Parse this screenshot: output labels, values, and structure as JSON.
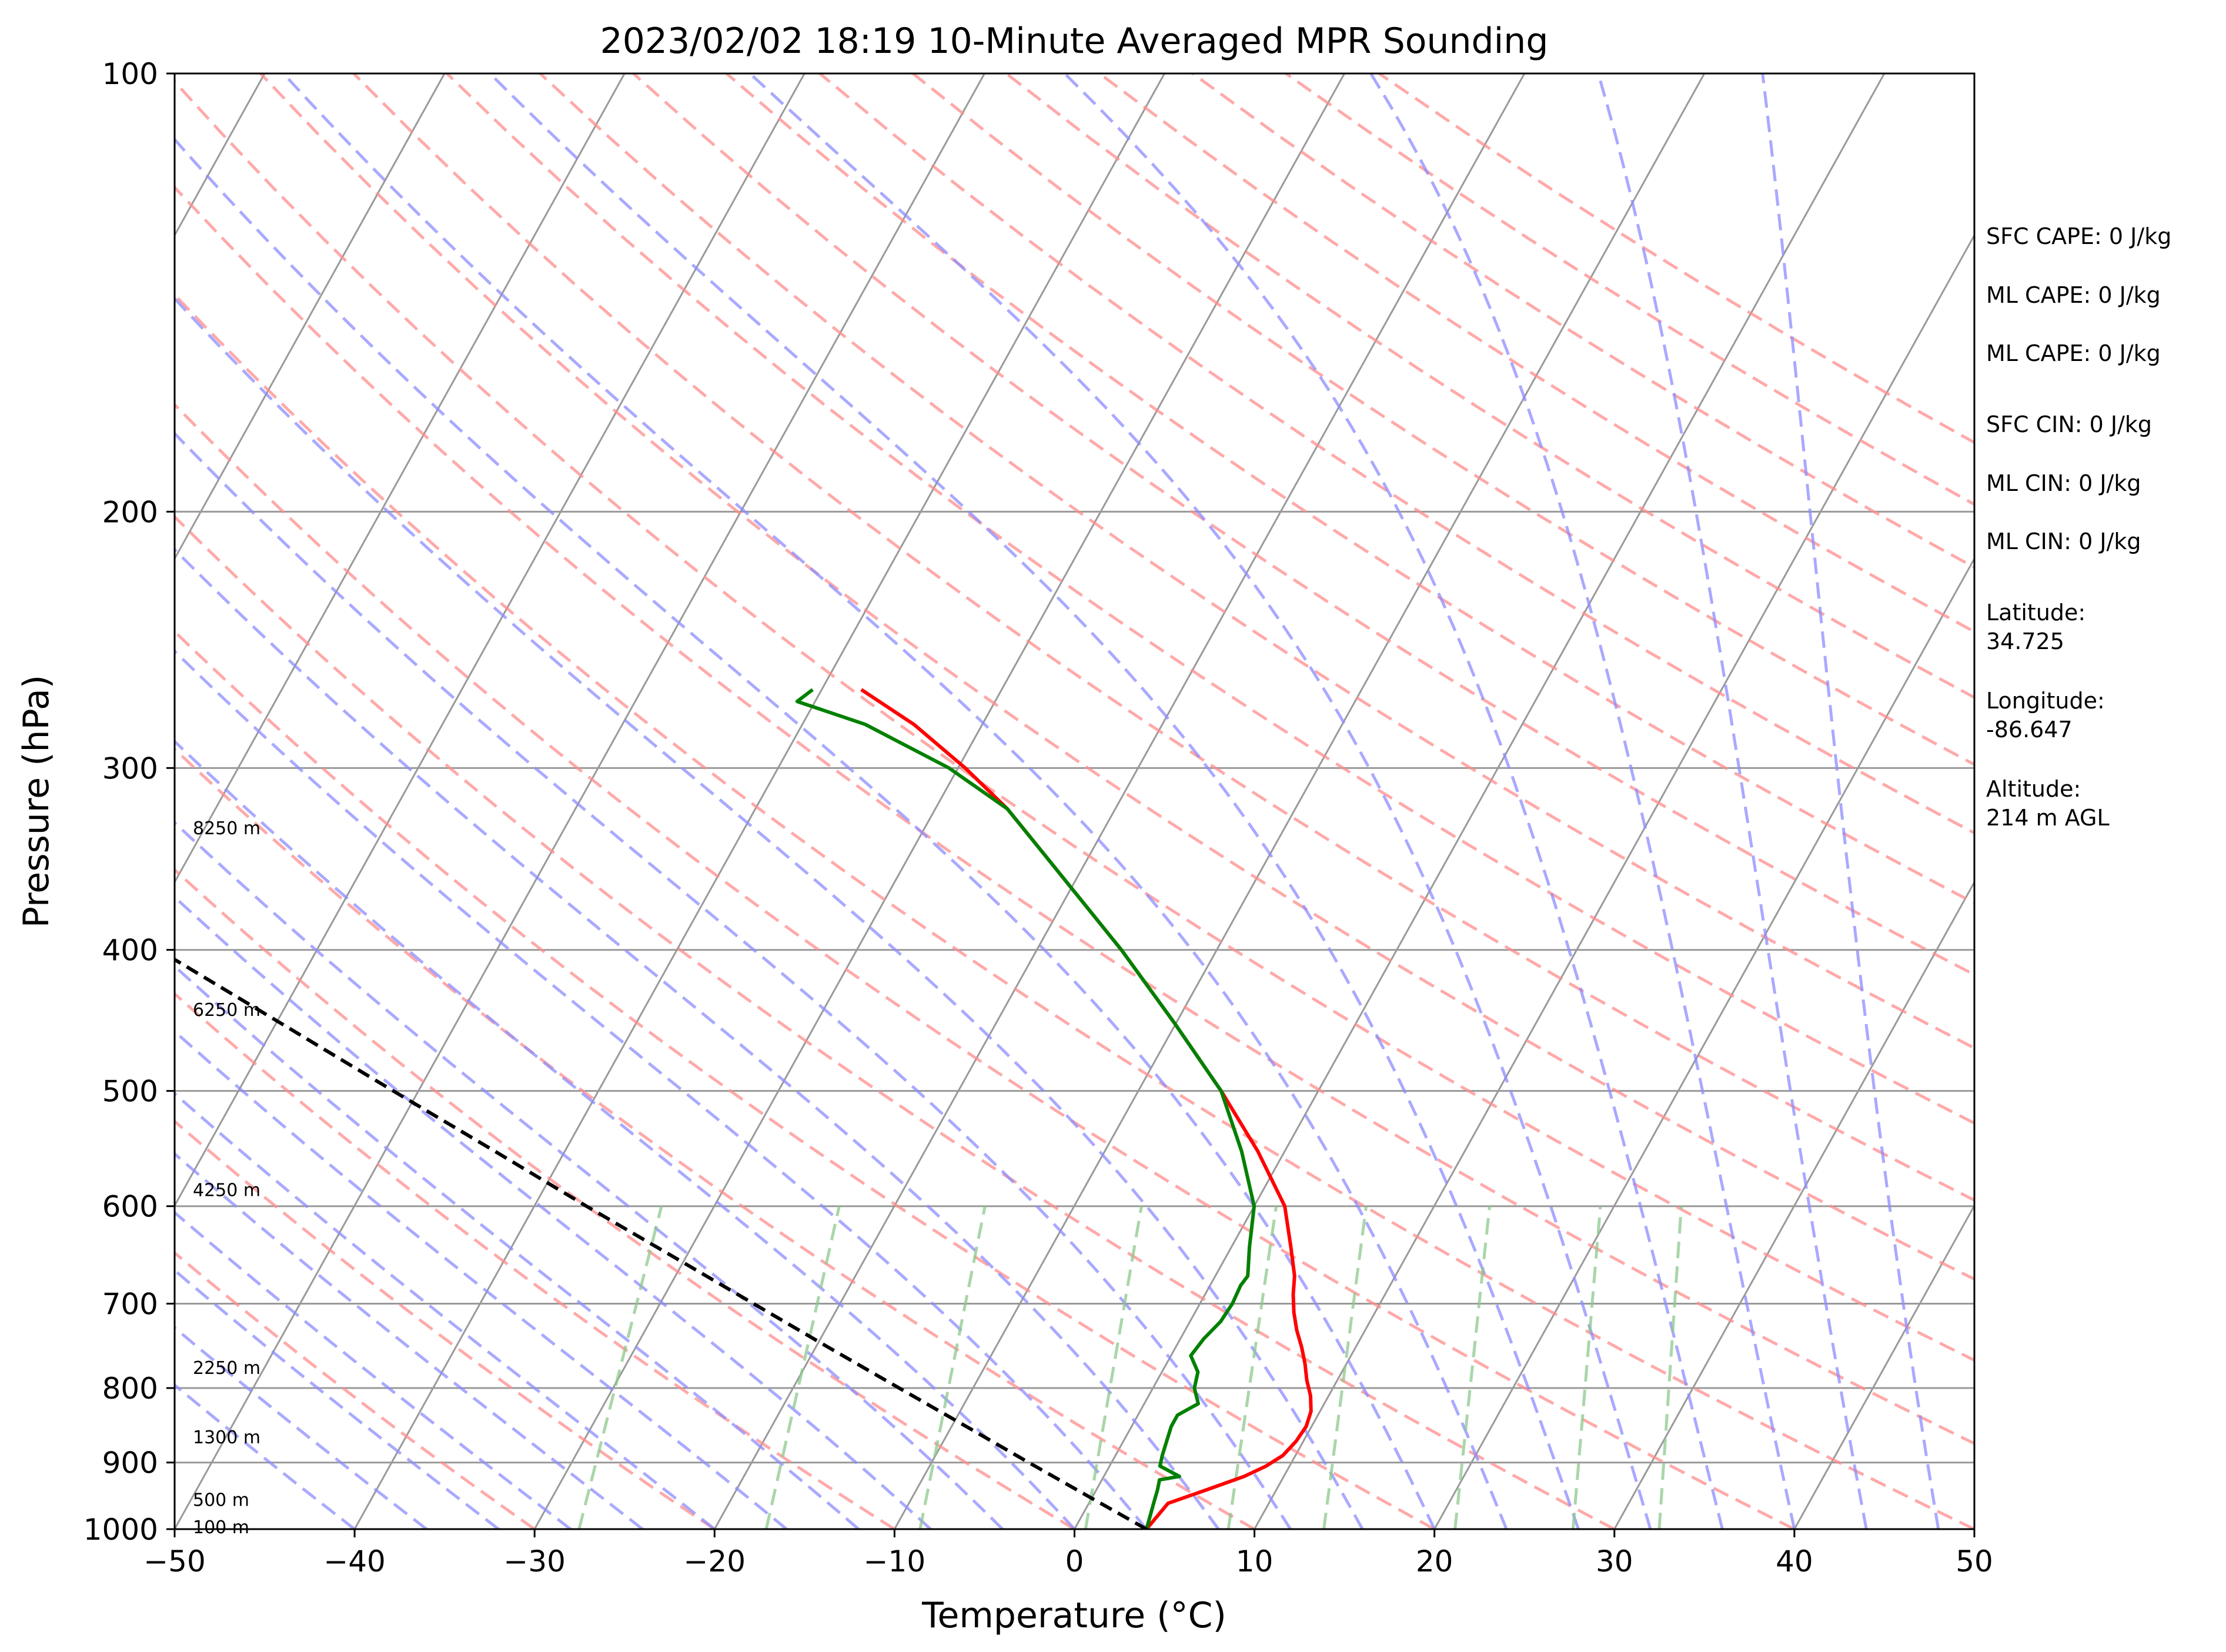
{
  "chart_data": {
    "type": "line",
    "subtype": "skew-t log-p sounding diagram",
    "title": "2023/02/02 18:19 10-Minute Averaged MPR Sounding",
    "xlabel": "Temperature (°C)",
    "ylabel": "Pressure (hPa)",
    "xlim": [
      -50,
      50
    ],
    "ylim": [
      1000,
      100
    ],
    "y_scale": "log",
    "x_ticks": [
      -50,
      -40,
      -30,
      -20,
      -10,
      0,
      10,
      20,
      30,
      40,
      50
    ],
    "x_tick_labels": [
      "−50",
      "−40",
      "−30",
      "−20",
      "−10",
      "0",
      "10",
      "20",
      "30",
      "40",
      "50"
    ],
    "y_ticks": [
      100,
      200,
      300,
      400,
      500,
      600,
      700,
      800,
      900,
      1000
    ],
    "y_tick_labels": [
      "100",
      "200",
      "300",
      "400",
      "500",
      "600",
      "700",
      "800",
      "900",
      "1000"
    ],
    "isotherm_skew_deg_per_decade": 45,
    "colors": {
      "temperature": "#ff0000",
      "dewpoint": "#008000",
      "parcel": "#000000",
      "dry_adiabats": "#ff8c8c",
      "moist_adiabats": "#8c8cff",
      "mixing_ratio": "#8cc88c",
      "isotherms": "#999999",
      "isobars": "#999999"
    },
    "series": [
      {
        "key": "temperature",
        "p": [
          1000,
          960,
          940,
          920,
          905,
          890,
          870,
          850,
          830,
          810,
          790,
          770,
          750,
          730,
          710,
          690,
          670,
          640,
          600,
          550,
          500,
          450,
          400,
          350,
          320,
          300,
          280,
          265
        ],
        "t": [
          4.0,
          4.4,
          6.1,
          7.8,
          8.7,
          9.3,
          9.6,
          9.7,
          9.5,
          9.0,
          8.3,
          7.7,
          7.0,
          6.2,
          5.5,
          4.9,
          4.4,
          3.3,
          1.7,
          -1.5,
          -5.4,
          -10.0,
          -15.3,
          -21.7,
          -26.0,
          -29.6,
          -33.8,
          -37.8
        ]
      },
      {
        "key": "dewpoint",
        "p": [
          1000,
          960,
          940,
          925,
          920,
          905,
          890,
          870,
          850,
          835,
          820,
          800,
          780,
          760,
          740,
          720,
          700,
          680,
          670,
          640,
          600,
          550,
          500,
          450,
          400,
          350,
          320,
          300,
          280,
          270,
          265
        ],
        "t": [
          4.0,
          3.6,
          3.4,
          3.2,
          4.2,
          2.8,
          2.6,
          2.4,
          2.2,
          2.2,
          3.0,
          2.3,
          2.0,
          1.1,
          1.3,
          1.7,
          1.8,
          1.7,
          1.8,
          1.0,
          0.0,
          -2.4,
          -5.4,
          -10.0,
          -15.3,
          -21.7,
          -26.0,
          -30.5,
          -36.5,
          -41.0,
          -40.5
        ]
      },
      {
        "key": "parcel",
        "p": [
          1000,
          950,
          900,
          850,
          800,
          750,
          700,
          650,
          600,
          550,
          500,
          450,
          400,
          350,
          300,
          270
        ],
        "t": [
          4.0,
          -0.2,
          -4.6,
          -9.2,
          -14.1,
          -19.3,
          -24.8,
          -30.7,
          -37.1,
          -43.9,
          -51.4,
          -59.6,
          -68.8,
          -79.0,
          -90.8,
          -98.9
        ]
      }
    ],
    "altitude_labels": [
      "8250 m",
      "6250 m",
      "4250 m",
      "2250 m",
      "1300 m",
      "500 m",
      "100 m"
    ],
    "altitude_label_pressures": [
      330,
      440,
      585,
      775,
      865,
      955,
      997
    ],
    "info": {
      "sfc_cape": "SFC CAPE: 0 J/kg",
      "ml_cape_1": "ML CAPE: 0 J/kg",
      "ml_cape_2": "ML CAPE: 0 J/kg",
      "sfc_cin": "SFC CIN: 0 J/kg",
      "ml_cin_1": "ML CIN: 0 J/kg",
      "ml_cin_2": "ML CIN: 0 J/kg",
      "latitude_label": "Latitude:",
      "latitude": "34.725",
      "longitude_label": "Longitude:",
      "longitude": "-86.647",
      "altitude_label": "Altitude:",
      "altitude": "214 m AGL"
    }
  }
}
